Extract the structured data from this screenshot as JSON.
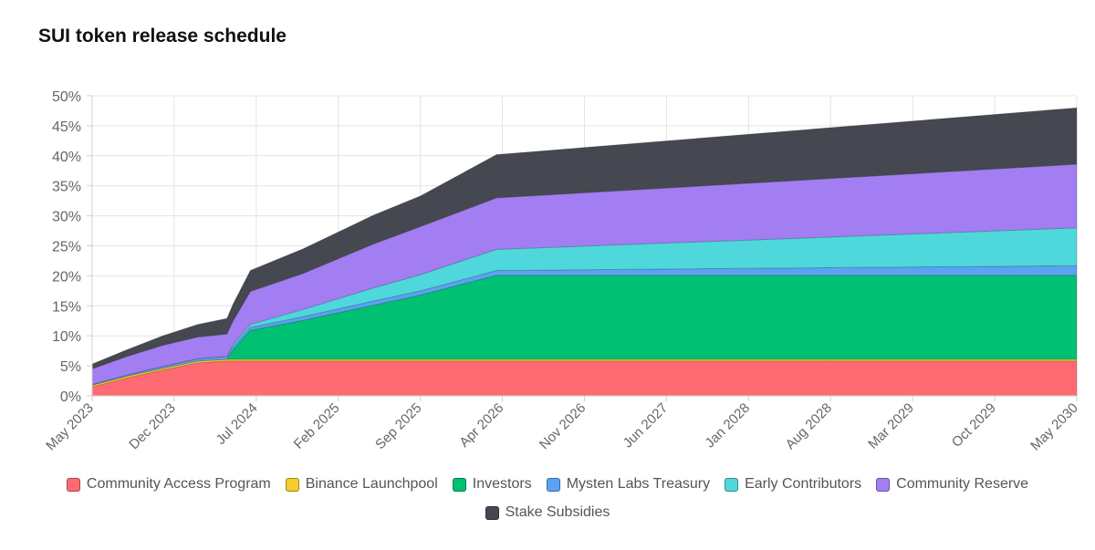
{
  "title": "SUI token release schedule",
  "chart_data": {
    "type": "area",
    "stacked": true,
    "title": "SUI token release schedule",
    "xlabel": "",
    "ylabel": "",
    "ylim": [
      0,
      50
    ],
    "y_ticks": [
      0,
      5,
      10,
      15,
      20,
      25,
      30,
      35,
      40,
      45,
      50
    ],
    "y_tick_suffix": "%",
    "grid": true,
    "legend_position": "bottom",
    "x_ticks": [
      "May 2023",
      "Dec 2023",
      "Jul 2024",
      "Feb 2025",
      "Sep 2025",
      "Apr 2026",
      "Nov 2026",
      "Jun 2027",
      "Jan 2028",
      "Aug 2028",
      "Mar 2029",
      "Oct 2029",
      "May 2030"
    ],
    "x": [
      0,
      3,
      6,
      9,
      11.5,
      12,
      13.5,
      18,
      24,
      28,
      34.5,
      84
    ],
    "series": [
      {
        "name": "Community Access Program",
        "color": "#ff6b72",
        "values": [
          1.5,
          3.0,
          4.3,
          5.5,
          5.8,
          5.8,
          5.8,
          5.8,
          5.8,
          5.8,
          5.8,
          5.8
        ]
      },
      {
        "name": "Binance Launchpool",
        "color": "#f5cd2d",
        "values": [
          0.3,
          0.3,
          0.3,
          0.3,
          0.3,
          0.3,
          0.3,
          0.3,
          0.3,
          0.3,
          0.3,
          0.3
        ]
      },
      {
        "name": "Investors",
        "color": "#00c073",
        "values": [
          0.0,
          0.0,
          0.0,
          0.0,
          0.0,
          1.5,
          4.8,
          6.5,
          9.0,
          10.7,
          14.0,
          14.0
        ]
      },
      {
        "name": "Mysten Labs Treasury",
        "color": "#5aa2f2",
        "values": [
          0.1,
          0.2,
          0.3,
          0.4,
          0.5,
          0.5,
          0.5,
          0.6,
          0.7,
          0.7,
          0.8,
          1.6
        ]
      },
      {
        "name": "Early Contributors",
        "color": "#4fd8dc",
        "values": [
          0.0,
          0.0,
          0.0,
          0.0,
          0.0,
          0.4,
          0.5,
          1.2,
          2.2,
          2.7,
          3.5,
          6.3
        ]
      },
      {
        "name": "Community Reserve",
        "color": "#a27ef2",
        "values": [
          2.6,
          3.1,
          3.5,
          3.6,
          3.7,
          3.9,
          5.5,
          6.0,
          7.3,
          8.0,
          8.6,
          10.6
        ]
      },
      {
        "name": "Stake Subsidies",
        "color": "#454850",
        "values": [
          0.8,
          1.1,
          1.6,
          2.1,
          2.6,
          2.8,
          3.5,
          4.1,
          4.8,
          5.1,
          7.2,
          9.4
        ]
      }
    ]
  }
}
